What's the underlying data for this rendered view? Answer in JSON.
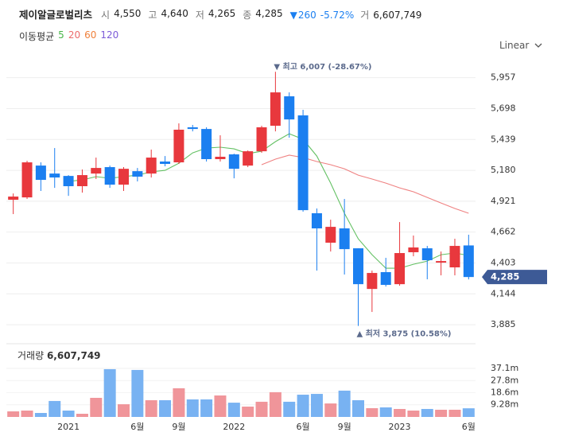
{
  "header": {
    "name": "제이알글로벌리츠",
    "quote": [
      {
        "label": "시",
        "value": "4,550"
      },
      {
        "label": "고",
        "value": "4,640"
      },
      {
        "label": "저",
        "value": "4,265"
      },
      {
        "label": "종",
        "value": "4,285"
      }
    ],
    "change": "260",
    "change_pct": "-5.72%",
    "volume_label": "거",
    "volume": "6,607,749"
  },
  "toolbar": {
    "scale": "Linear"
  },
  "chart_data": [
    {
      "type": "candlestick",
      "legend_title": "이동평균",
      "categories": [
        null,
        null,
        null,
        null,
        "2021",
        null,
        null,
        null,
        null,
        "6월",
        null,
        null,
        "9월",
        null,
        null,
        null,
        "2022",
        null,
        null,
        null,
        null,
        "6월",
        null,
        null,
        "9월",
        null,
        null,
        null,
        "2023",
        null,
        null,
        null,
        null,
        "6월"
      ],
      "open": [
        4933,
        4953,
        5220,
        5153,
        5133,
        5047,
        5153,
        5207,
        5060,
        5173,
        5153,
        5254,
        5247,
        5541,
        5527,
        5274,
        5314,
        5220,
        5340,
        5554,
        5801,
        5641,
        4820,
        4573,
        4693,
        4526,
        4185,
        4326,
        4225,
        4493,
        4526,
        4406,
        4366,
        4550
      ],
      "high": [
        4986,
        5260,
        5247,
        5367,
        5140,
        5187,
        5287,
        5220,
        5207,
        5200,
        5354,
        5300,
        5574,
        5561,
        5541,
        5474,
        5320,
        5347,
        5554,
        6007,
        5834,
        5688,
        4860,
        4766,
        4940,
        4526,
        4339,
        4446,
        4746,
        4633,
        4546,
        4499,
        4606,
        4640
      ],
      "low": [
        4813,
        4940,
        5007,
        5033,
        4966,
        4993,
        5107,
        5033,
        5007,
        5087,
        5120,
        5214,
        5234,
        5507,
        5254,
        5254,
        5113,
        5207,
        5327,
        5507,
        5454,
        4833,
        4339,
        4499,
        4306,
        3875,
        3992,
        4205,
        4212,
        4459,
        4266,
        4299,
        4299,
        4265
      ],
      "close": [
        4960,
        5247,
        5100,
        5120,
        5047,
        5140,
        5200,
        5060,
        5193,
        5127,
        5287,
        5234,
        5521,
        5527,
        5274,
        5294,
        5193,
        5340,
        5541,
        5834,
        5607,
        4846,
        4693,
        4706,
        4519,
        4225,
        4319,
        4219,
        4486,
        4533,
        4426,
        4419,
        4546,
        4285
      ],
      "up_color": "#e8383d",
      "down_color": "#1b7ff0",
      "series": [
        {
          "name": "5",
          "color": "#49b649",
          "values": [
            null,
            null,
            null,
            null,
            5087,
            5100,
            5127,
            5113,
            5127,
            5140,
            5167,
            5180,
            5240,
            5327,
            5367,
            5374,
            5360,
            5320,
            5340,
            5421,
            5487,
            5441,
            5300,
            5073,
            4820,
            4606,
            4472,
            4359,
            4359,
            4392,
            4419,
            4472,
            4486,
            4466
          ]
        },
        {
          "name": "20",
          "color": "#ec6b6b",
          "values": [
            null,
            null,
            null,
            null,
            null,
            null,
            null,
            null,
            null,
            null,
            null,
            null,
            null,
            null,
            null,
            null,
            null,
            null,
            5227,
            5274,
            5307,
            5287,
            5254,
            5227,
            5193,
            5140,
            5107,
            5073,
            5033,
            5000,
            4953,
            4906,
            4860,
            4820
          ]
        },
        {
          "name": "60",
          "color": "#f0813c"
        },
        {
          "name": "120",
          "color": "#7c5cd8"
        }
      ],
      "high_annotation": "최고 6,007 (-28.67%)",
      "low_annotation": "최저 3,875 (10.58%)",
      "last_label": "4,285",
      "ylim": [
        3772,
        6075
      ],
      "yticks": [
        {
          "value": 3885,
          "label": "3,885"
        },
        {
          "value": 4144,
          "label": "4,144"
        },
        {
          "value": 4403,
          "label": "4,403"
        },
        {
          "value": 4662,
          "label": "4,662"
        },
        {
          "value": 4921,
          "label": "4,921"
        },
        {
          "value": 5180,
          "label": "5,180"
        },
        {
          "value": 5439,
          "label": "5,439"
        },
        {
          "value": 5698,
          "label": "5,698"
        },
        {
          "value": 5957,
          "label": "5,957"
        }
      ],
      "grid": true
    },
    {
      "type": "bar",
      "title": "거래량",
      "title_value": "6,607,749",
      "values": [
        4260000,
        4870000,
        3040000,
        12200000,
        4870000,
        2430000,
        14600000,
        36500000,
        9700000,
        35900000,
        12800000,
        12800000,
        21900000,
        13400000,
        13400000,
        16400000,
        10900000,
        7900000,
        11600000,
        18900000,
        11600000,
        17000000,
        17600000,
        10300000,
        20100000,
        12800000,
        6700000,
        7300000,
        6100000,
        4870000,
        6100000,
        5500000,
        5500000,
        6607749
      ],
      "up_color": "#f0959a",
      "down_color": "#78b2f2",
      "ylim": [
        0,
        54100000
      ],
      "yticks": [
        {
          "value": 9280000,
          "label": "9.28m"
        },
        {
          "value": 18600000,
          "label": "18.6m"
        },
        {
          "value": 27800000,
          "label": "27.8m"
        },
        {
          "value": 37100000,
          "label": "37.1m"
        }
      ],
      "grid": true
    }
  ]
}
